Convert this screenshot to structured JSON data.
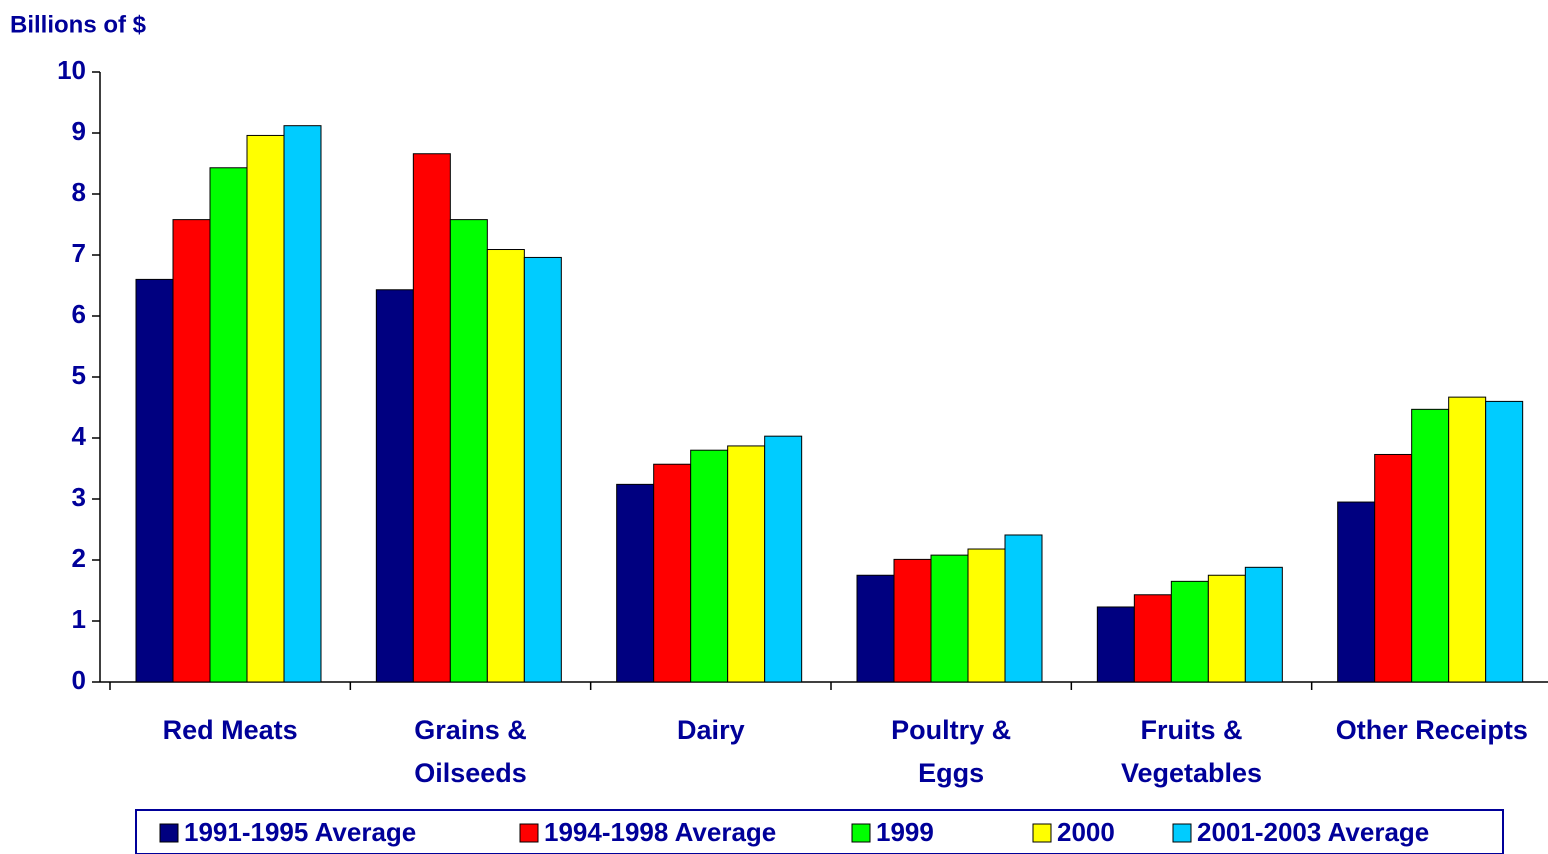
{
  "chart_data": {
    "type": "bar",
    "y_label": "Billions of $",
    "categories": [
      "Red Meats",
      "Grains &\nOilseeds",
      "Dairy",
      "Poultry &\nEggs",
      "Fruits &\nVegetables",
      "Other Receipts"
    ],
    "series": [
      {
        "name": "1991-1995 Average",
        "color": "#000080",
        "values": [
          6.6,
          6.43,
          3.24,
          1.75,
          1.23,
          2.95
        ]
      },
      {
        "name": "1994-1998 Average",
        "color": "#ff0000",
        "values": [
          7.58,
          8.66,
          3.57,
          2.01,
          1.43,
          3.73
        ]
      },
      {
        "name": "1999",
        "color": "#00ff00",
        "values": [
          8.43,
          7.58,
          3.8,
          2.08,
          1.65,
          4.47
        ]
      },
      {
        "name": "2000",
        "color": "#ffff00",
        "values": [
          8.96,
          7.09,
          3.87,
          2.18,
          1.75,
          4.67
        ]
      },
      {
        "name": "2001-2003 Average",
        "color": "#00ccff",
        "values": [
          9.12,
          6.96,
          4.03,
          2.41,
          1.88,
          4.6
        ]
      }
    ],
    "ylim": [
      0,
      10
    ],
    "yticks": [
      0,
      1,
      2,
      3,
      4,
      5,
      6,
      7,
      8,
      9,
      10
    ]
  }
}
